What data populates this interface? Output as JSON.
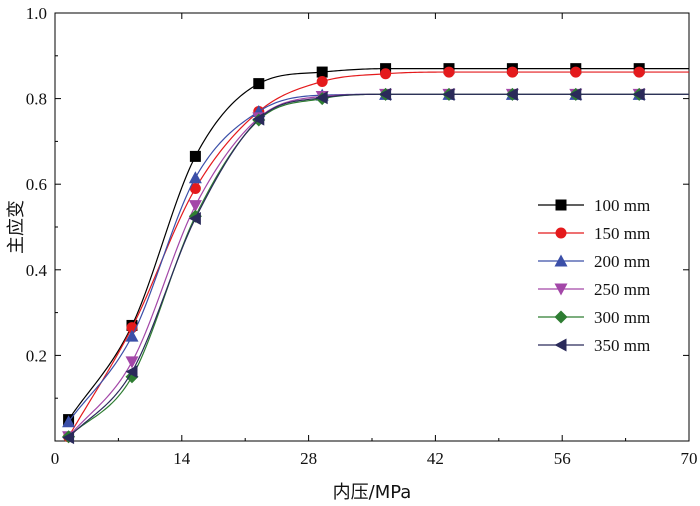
{
  "chart_data": {
    "type": "line",
    "xlabel": "内压/MPa",
    "ylabel": "主应变",
    "xlim": [
      0,
      70
    ],
    "ylim": [
      0,
      1.0
    ],
    "xticks": [
      "0",
      "14",
      "28",
      "42",
      "56",
      "70"
    ],
    "yticks": [
      "0.2",
      "0.4",
      "0.6",
      "0.8",
      "1.0"
    ],
    "grid": false,
    "legend_position": "right",
    "series": [
      {
        "name": "100 mm",
        "color": "#000000",
        "marker": "square",
        "x": [
          1.5,
          8.5,
          15.5,
          22.5,
          29.5,
          36.5,
          43.5,
          50.5,
          57.5,
          64.5
        ],
        "y": [
          0.05,
          0.27,
          0.665,
          0.835,
          0.862,
          0.87,
          0.87,
          0.87,
          0.87,
          0.87
        ]
      },
      {
        "name": "150 mm",
        "color": "#e41a1c",
        "marker": "circle",
        "x": [
          1.5,
          8.5,
          15.5,
          22.5,
          29.5,
          36.5,
          43.5,
          50.5,
          57.5,
          64.5
        ],
        "y": [
          0.01,
          0.265,
          0.59,
          0.77,
          0.84,
          0.858,
          0.862,
          0.862,
          0.862,
          0.862
        ]
      },
      {
        "name": "200 mm",
        "color": "#3b4fa8",
        "marker": "triangle-up",
        "x": [
          1.5,
          8.5,
          15.5,
          22.5,
          29.5,
          36.5,
          43.5,
          50.5,
          57.5,
          64.5
        ],
        "y": [
          0.045,
          0.245,
          0.615,
          0.77,
          0.808,
          0.81,
          0.81,
          0.81,
          0.81,
          0.81
        ]
      },
      {
        "name": "250 mm",
        "color": "#a347a8",
        "marker": "triangle-down",
        "x": [
          1.5,
          8.5,
          15.5,
          22.5,
          29.5,
          36.5,
          43.5,
          50.5,
          57.5,
          64.5
        ],
        "y": [
          0.01,
          0.185,
          0.55,
          0.755,
          0.805,
          0.81,
          0.81,
          0.81,
          0.81,
          0.81
        ]
      },
      {
        "name": "300 mm",
        "color": "#2e7d32",
        "marker": "diamond",
        "x": [
          1.5,
          8.5,
          15.5,
          22.5,
          29.5,
          36.5,
          43.5,
          50.5,
          57.5,
          64.5
        ],
        "y": [
          0.01,
          0.15,
          0.525,
          0.75,
          0.8,
          0.81,
          0.81,
          0.81,
          0.81,
          0.81
        ]
      },
      {
        "name": "350 mm",
        "color": "#2a2a5a",
        "marker": "triangle-left",
        "x": [
          1.5,
          8.5,
          15.5,
          22.5,
          29.5,
          36.5,
          43.5,
          50.5,
          57.5,
          64.5
        ],
        "y": [
          0.008,
          0.162,
          0.52,
          0.752,
          0.802,
          0.81,
          0.81,
          0.81,
          0.81,
          0.81
        ]
      }
    ]
  }
}
